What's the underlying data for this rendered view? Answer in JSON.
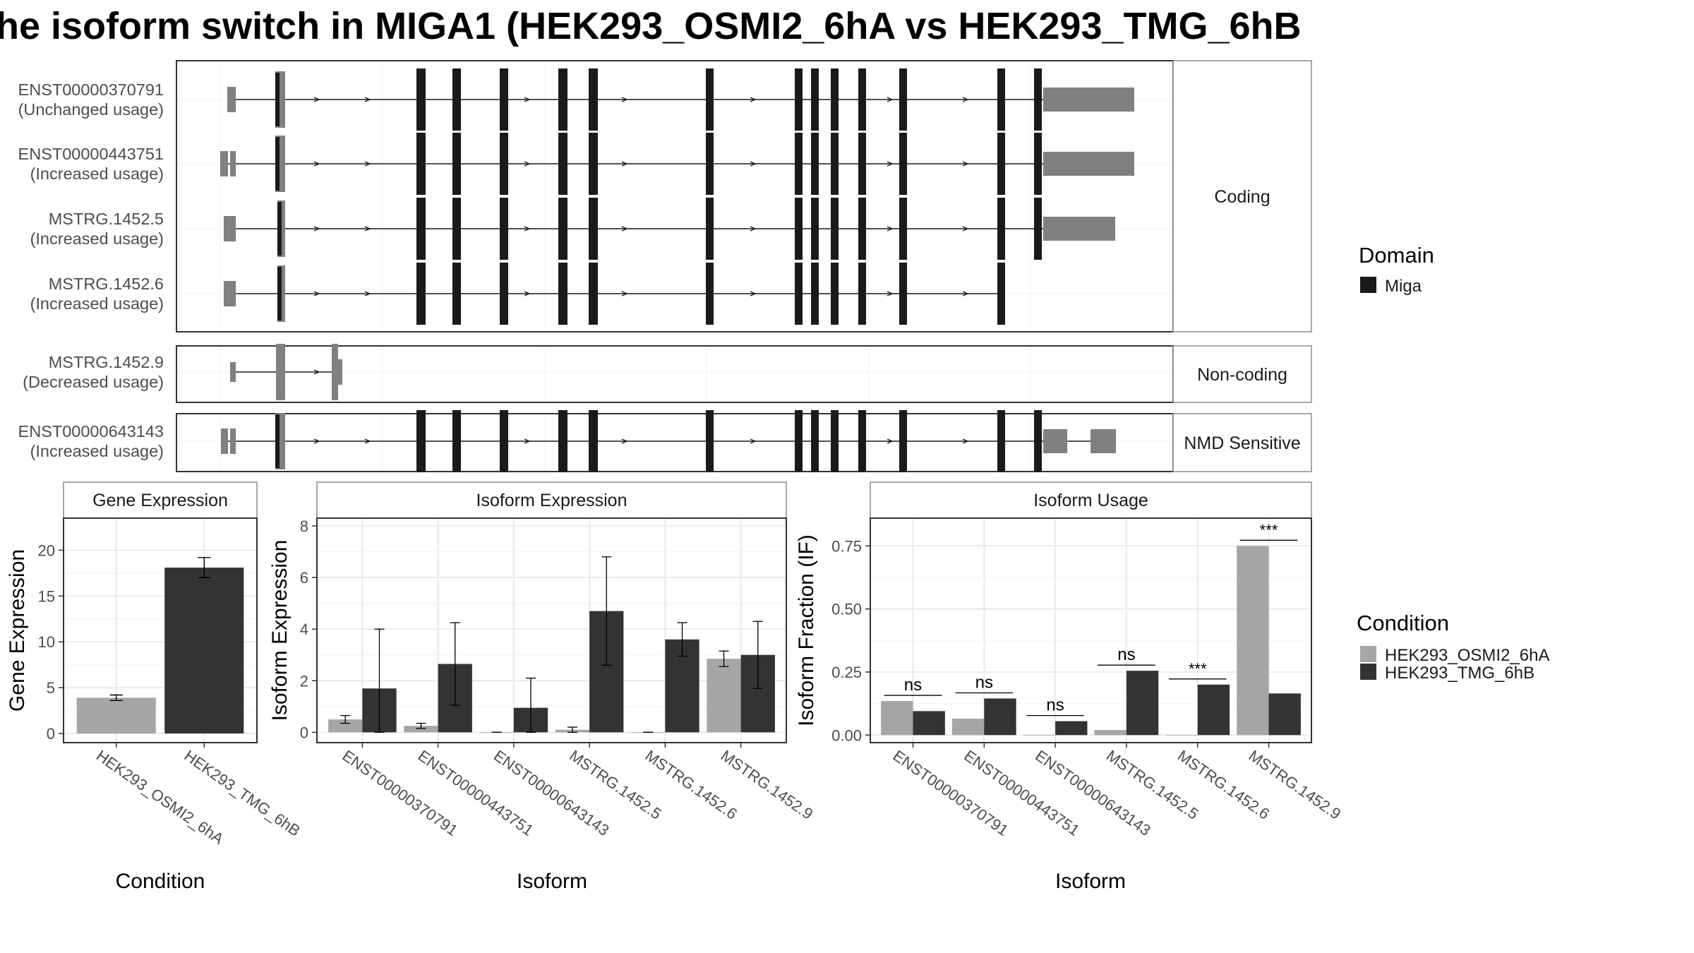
{
  "title": "he isoform switch in MIGA1 (HEK293_OSMI2_6hA vs HEK293_TMG_6hB",
  "colors": {
    "miga": "#1a1a1a",
    "utr_exon": "#808080",
    "intron": "#1a1a1a",
    "cond_a": "#a6a6a6",
    "cond_b": "#333333",
    "panel_border": "#333333",
    "strip_border": "#8c8c8c",
    "grid": "#ebebeb"
  },
  "structure": {
    "groups": [
      {
        "label": "Coding",
        "rows": [
          {
            "id": "ENST00000370791",
            "usage": "(Unchanged usage)"
          },
          {
            "id": "ENST00000443751",
            "usage": "(Increased usage)"
          },
          {
            "id": "MSTRG.1452.5",
            "usage": "(Increased usage)"
          },
          {
            "id": "MSTRG.1452.6",
            "usage": "(Increased usage)"
          }
        ]
      },
      {
        "label": "Non-coding",
        "rows": [
          {
            "id": "MSTRG.1452.9",
            "usage": "(Decreased usage)"
          }
        ]
      },
      {
        "label": "NMD Sensitive",
        "rows": [
          {
            "id": "ENST00000643143",
            "usage": "(Increased usage)"
          }
        ]
      }
    ],
    "domain_legend": {
      "title": "Domain",
      "items": [
        "Miga"
      ]
    }
  },
  "chart_data": [
    {
      "type": "bar",
      "title": "Gene Expression",
      "xlabel": "Condition",
      "ylabel": "Gene Expression",
      "categories": [
        "HEK293_OSMI2_6hA",
        "HEK293_TMG_6hB"
      ],
      "values": [
        3.9,
        18.1
      ],
      "error_low": [
        3.6,
        17.0
      ],
      "error_high": [
        4.2,
        19.2
      ],
      "ylim": [
        -1,
        23.5
      ],
      "yticks": [
        0,
        5,
        10,
        15,
        20
      ],
      "grid": true
    },
    {
      "type": "bar",
      "title": "Isoform Expression",
      "xlabel": "Isoform",
      "ylabel": "Isoform Expression",
      "categories": [
        "ENST00000370791",
        "ENST00000443751",
        "ENST00000643143",
        "MSTRG.1452.5",
        "MSTRG.1452.6",
        "MSTRG.1452.9"
      ],
      "series": [
        {
          "name": "HEK293_OSMI2_6hA",
          "values": [
            0.5,
            0.25,
            0.0,
            0.1,
            0.0,
            2.85
          ],
          "err_low": [
            0.35,
            0.15,
            0.0,
            0.0,
            0.0,
            2.55
          ],
          "err_high": [
            0.65,
            0.35,
            0.0,
            0.2,
            0.0,
            3.15
          ]
        },
        {
          "name": "HEK293_TMG_6hB",
          "values": [
            1.7,
            2.65,
            0.95,
            4.7,
            3.6,
            3.0
          ],
          "err_low": [
            0.0,
            1.05,
            0.0,
            2.6,
            2.95,
            1.7
          ],
          "err_high": [
            4.0,
            4.25,
            2.1,
            6.8,
            4.25,
            4.3
          ]
        }
      ],
      "ylim": [
        -0.4,
        8.3
      ],
      "yticks": [
        0,
        2,
        4,
        6,
        8
      ],
      "grid": true
    },
    {
      "type": "bar",
      "title": "Isoform Usage",
      "xlabel": "Isoform",
      "ylabel": "Isoform Fraction (IF)",
      "categories": [
        "ENST00000370791",
        "ENST00000443751",
        "ENST00000643143",
        "MSTRG.1452.5",
        "MSTRG.1452.6",
        "MSTRG.1452.9"
      ],
      "series": [
        {
          "name": "HEK293_OSMI2_6hA",
          "values": [
            0.135,
            0.065,
            0.0,
            0.02,
            0.0,
            0.75
          ]
        },
        {
          "name": "HEK293_TMG_6hB",
          "values": [
            0.095,
            0.145,
            0.055,
            0.255,
            0.2,
            0.165
          ]
        }
      ],
      "significance": [
        "ns",
        "ns",
        "ns",
        "ns",
        "***",
        "***"
      ],
      "ylim": [
        -0.03,
        0.86
      ],
      "yticks": [
        "0.00",
        "0.25",
        "0.50",
        "0.75"
      ],
      "grid": true
    }
  ],
  "condition_legend": {
    "title": "Condition",
    "items": [
      "HEK293_OSMI2_6hA",
      "HEK293_TMG_6hB"
    ]
  }
}
